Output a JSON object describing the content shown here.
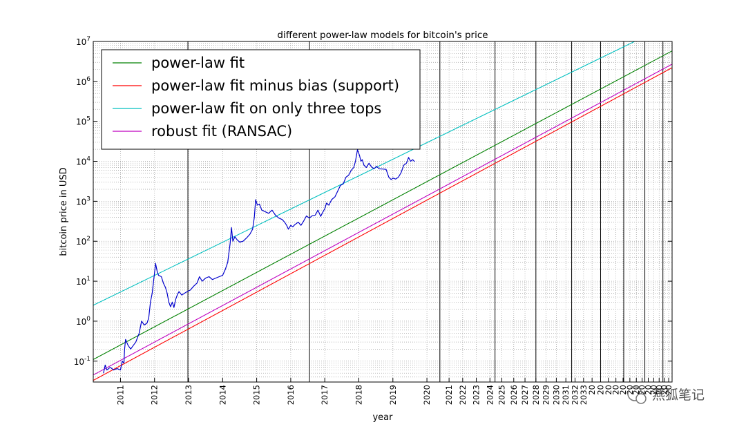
{
  "chart_data": {
    "type": "line",
    "title": "different power-law models for bitcoin's price",
    "xlabel": "year",
    "ylabel": "bitcoin price in USD",
    "yscale": "log",
    "ylim": [
      0.03,
      10000000
    ],
    "xlim": [
      2010.2,
      2027.2
    ],
    "grid": true,
    "legend_position": "top-left",
    "y_ticks": [
      {
        "value": 0.1,
        "base": "10",
        "exp": "-1"
      },
      {
        "value": 1,
        "base": "10",
        "exp": "0"
      },
      {
        "value": 10,
        "base": "10",
        "exp": "1"
      },
      {
        "value": 100,
        "base": "10",
        "exp": "2"
      },
      {
        "value": 1000,
        "base": "10",
        "exp": "3"
      },
      {
        "value": 10000,
        "base": "10",
        "exp": "4"
      },
      {
        "value": 100000,
        "base": "10",
        "exp": "5"
      },
      {
        "value": 1000000,
        "base": "10",
        "exp": "6"
      },
      {
        "value": 10000000,
        "base": "10",
        "exp": "7"
      }
    ],
    "x_ticks": [
      {
        "value": 2011.0,
        "label": "2011"
      },
      {
        "value": 2012.0,
        "label": "2012"
      },
      {
        "value": 2013.0,
        "label": "2013"
      },
      {
        "value": 2014.0,
        "label": "2014"
      },
      {
        "value": 2015.0,
        "label": "2015"
      },
      {
        "value": 2016.0,
        "label": "2016"
      },
      {
        "value": 2017.0,
        "label": "2017"
      },
      {
        "value": 2018.0,
        "label": "2018"
      },
      {
        "value": 2019.0,
        "label": "2019"
      },
      {
        "value": 2020.0,
        "label": "2020"
      },
      {
        "value": 2020.65,
        "label": "2021"
      },
      {
        "value": 2021.05,
        "label": "2022"
      },
      {
        "value": 2021.45,
        "label": "2023"
      },
      {
        "value": 2021.85,
        "label": "2024"
      },
      {
        "value": 2022.2,
        "label": "2025"
      },
      {
        "value": 2022.55,
        "label": "2026"
      },
      {
        "value": 2022.88,
        "label": "2027"
      },
      {
        "value": 2023.2,
        "label": "2028"
      },
      {
        "value": 2023.5,
        "label": "2029"
      },
      {
        "value": 2023.8,
        "label": "2030"
      },
      {
        "value": 2024.08,
        "label": "2031"
      },
      {
        "value": 2024.35,
        "label": "2032"
      },
      {
        "value": 2024.6,
        "label": "2033"
      },
      {
        "value": 2024.85,
        "label": "20"
      },
      {
        "value": 2025.1,
        "label": "20"
      },
      {
        "value": 2025.33,
        "label": "20"
      },
      {
        "value": 2025.55,
        "label": "20"
      },
      {
        "value": 2025.76,
        "label": "20"
      },
      {
        "value": 2025.96,
        "label": "20"
      },
      {
        "value": 2026.15,
        "label": "20"
      },
      {
        "value": 2026.32,
        "label": "20"
      },
      {
        "value": 2026.5,
        "label": "20"
      },
      {
        "value": 2026.66,
        "label": "20"
      },
      {
        "value": 2026.82,
        "label": "20"
      },
      {
        "value": 2026.97,
        "label": "20"
      },
      {
        "value": 2027.1,
        "label": "20"
      }
    ],
    "halving_lines": [
      2012.98,
      2016.55,
      2020.38,
      2022.0,
      2023.2,
      2024.25,
      2025.1,
      2025.78,
      2026.4,
      2026.93
    ],
    "series": [
      {
        "name": "power-law fit",
        "color": "#008000",
        "points": [
          [
            2010.2,
            0.11
          ],
          [
            2027.2,
            5800000
          ]
        ]
      },
      {
        "name": "power-law fit minus bias (support)",
        "color": "#ff0000",
        "points": [
          [
            2010.2,
            0.033
          ],
          [
            2027.2,
            2200000
          ]
        ]
      },
      {
        "name": "power-law fit on only three tops",
        "color": "#00bfbf",
        "points": [
          [
            2010.2,
            2.5
          ],
          [
            2026.1,
            10000000
          ]
        ]
      },
      {
        "name": "robust fit (RANSAC)",
        "color": "#bf00bf",
        "points": [
          [
            2010.2,
            0.045
          ],
          [
            2027.2,
            2700000
          ]
        ]
      },
      {
        "name": "",
        "color": "#0000cc",
        "points": [
          [
            2010.5,
            0.05
          ],
          [
            2010.55,
            0.08
          ],
          [
            2010.6,
            0.06
          ],
          [
            2010.7,
            0.07
          ],
          [
            2010.8,
            0.06
          ],
          [
            2010.9,
            0.065
          ],
          [
            2011.0,
            0.06
          ],
          [
            2011.05,
            0.1
          ],
          [
            2011.1,
            0.09
          ],
          [
            2011.12,
            0.2
          ],
          [
            2011.15,
            0.35
          ],
          [
            2011.22,
            0.25
          ],
          [
            2011.3,
            0.2
          ],
          [
            2011.38,
            0.25
          ],
          [
            2011.45,
            0.3
          ],
          [
            2011.55,
            0.5
          ],
          [
            2011.62,
            1.0
          ],
          [
            2011.7,
            0.8
          ],
          [
            2011.78,
            0.9
          ],
          [
            2011.83,
            1.2
          ],
          [
            2011.88,
            3.0
          ],
          [
            2011.93,
            5.0
          ],
          [
            2011.97,
            10
          ],
          [
            2012.0,
            16
          ],
          [
            2012.03,
            28
          ],
          [
            2012.08,
            17
          ],
          [
            2012.12,
            14
          ],
          [
            2012.2,
            13
          ],
          [
            2012.26,
            9
          ],
          [
            2012.32,
            7
          ],
          [
            2012.37,
            5
          ],
          [
            2012.42,
            3
          ],
          [
            2012.47,
            2.3
          ],
          [
            2012.52,
            3.0
          ],
          [
            2012.57,
            2.2
          ],
          [
            2012.62,
            3.5
          ],
          [
            2012.68,
            4.8
          ],
          [
            2012.72,
            5.5
          ],
          [
            2012.8,
            4.5
          ],
          [
            2012.88,
            5.0
          ],
          [
            2012.96,
            5.5
          ],
          [
            2013.05,
            6.0
          ],
          [
            2013.15,
            7.5
          ],
          [
            2013.25,
            9
          ],
          [
            2013.32,
            13
          ],
          [
            2013.4,
            10
          ],
          [
            2013.5,
            12
          ],
          [
            2013.6,
            13
          ],
          [
            2013.7,
            11
          ],
          [
            2013.8,
            12
          ],
          [
            2013.9,
            13
          ],
          [
            2014.0,
            14
          ],
          [
            2014.08,
            20
          ],
          [
            2014.15,
            30
          ],
          [
            2014.22,
            90
          ],
          [
            2014.26,
            220
          ],
          [
            2014.3,
            100
          ],
          [
            2014.36,
            130
          ],
          [
            2014.42,
            110
          ],
          [
            2014.5,
            95
          ],
          [
            2014.6,
            100
          ],
          [
            2014.7,
            120
          ],
          [
            2014.8,
            150
          ],
          [
            2014.88,
            200
          ],
          [
            2014.93,
            400
          ],
          [
            2014.97,
            1100
          ],
          [
            2015.02,
            800
          ],
          [
            2015.08,
            850
          ],
          [
            2015.15,
            600
          ],
          [
            2015.25,
            550
          ],
          [
            2015.35,
            500
          ],
          [
            2015.45,
            600
          ],
          [
            2015.55,
            450
          ],
          [
            2015.65,
            380
          ],
          [
            2015.75,
            350
          ],
          [
            2015.82,
            300
          ],
          [
            2015.88,
            250
          ],
          [
            2015.93,
            200
          ],
          [
            2016.0,
            250
          ],
          [
            2016.06,
            230
          ],
          [
            2016.12,
            260
          ],
          [
            2016.22,
            300
          ],
          [
            2016.3,
            250
          ],
          [
            2016.38,
            320
          ],
          [
            2016.46,
            430
          ],
          [
            2016.55,
            380
          ],
          [
            2016.62,
            430
          ],
          [
            2016.72,
            450
          ],
          [
            2016.8,
            600
          ],
          [
            2016.88,
            420
          ],
          [
            2016.95,
            550
          ],
          [
            2017.0,
            650
          ],
          [
            2017.05,
            900
          ],
          [
            2017.12,
            800
          ],
          [
            2017.2,
            1100
          ],
          [
            2017.3,
            1300
          ],
          [
            2017.38,
            1800
          ],
          [
            2017.46,
            2500
          ],
          [
            2017.54,
            2700
          ],
          [
            2017.62,
            4000
          ],
          [
            2017.7,
            4500
          ],
          [
            2017.78,
            6000
          ],
          [
            2017.85,
            7000
          ],
          [
            2017.9,
            10000
          ],
          [
            2017.96,
            19500
          ],
          [
            2018.02,
            14000
          ],
          [
            2018.06,
            10000
          ],
          [
            2018.1,
            11000
          ],
          [
            2018.15,
            8000
          ],
          [
            2018.22,
            7000
          ],
          [
            2018.3,
            9000
          ],
          [
            2018.36,
            7500
          ],
          [
            2018.44,
            6500
          ],
          [
            2018.52,
            7500
          ],
          [
            2018.6,
            6500
          ],
          [
            2018.7,
            6400
          ],
          [
            2018.8,
            6300
          ],
          [
            2018.88,
            4000
          ],
          [
            2018.95,
            3500
          ],
          [
            2019.0,
            3800
          ],
          [
            2019.08,
            3600
          ],
          [
            2019.16,
            4000
          ],
          [
            2019.24,
            5200
          ],
          [
            2019.32,
            8000
          ],
          [
            2019.4,
            9000
          ],
          [
            2019.46,
            12500
          ],
          [
            2019.52,
            10000
          ],
          [
            2019.58,
            11000
          ],
          [
            2019.64,
            9800
          ]
        ]
      }
    ]
  },
  "watermark": "燕狐笔记"
}
